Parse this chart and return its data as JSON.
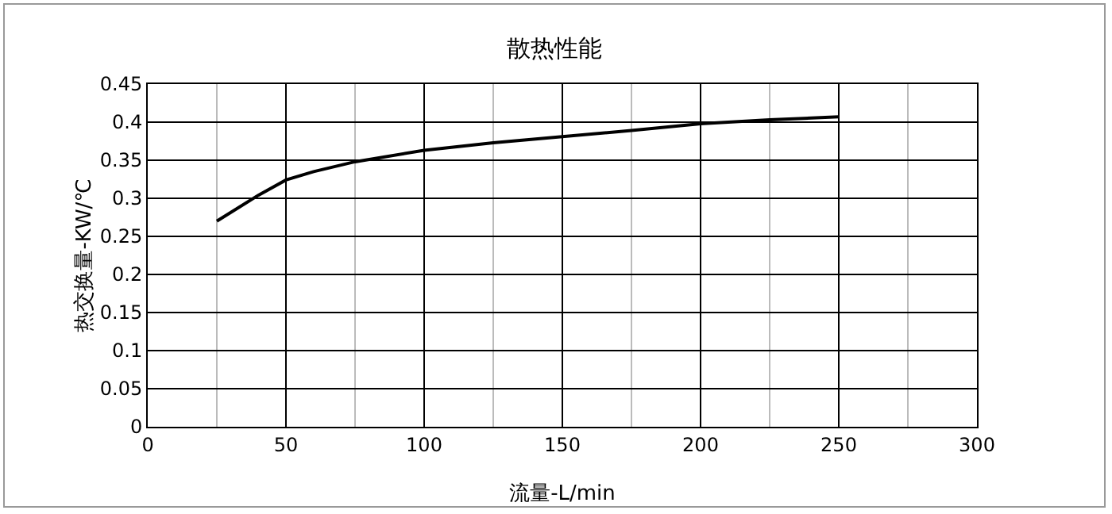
{
  "chart_data": {
    "type": "line",
    "title": "散热性能",
    "xlabel": "流量-L/min",
    "ylabel": "热交换量-KW/℃",
    "x": [
      25,
      40,
      50,
      60,
      75,
      100,
      125,
      150,
      175,
      200,
      225,
      250
    ],
    "series": [
      {
        "color": "#000000",
        "values": [
          0.27,
          0.304,
          0.324,
          0.335,
          0.348,
          0.363,
          0.373,
          0.381,
          0.389,
          0.398,
          0.403,
          0.407
        ]
      }
    ],
    "xlim": [
      0,
      300
    ],
    "xticks": [
      0,
      50,
      100,
      150,
      200,
      250,
      300
    ],
    "ylim": [
      0,
      0.45
    ],
    "yticks": [
      0,
      0.05,
      0.1,
      0.15,
      0.2,
      0.25,
      0.3,
      0.35,
      0.4,
      0.45
    ],
    "grid": true,
    "marker": "none",
    "line_style": "solid"
  }
}
